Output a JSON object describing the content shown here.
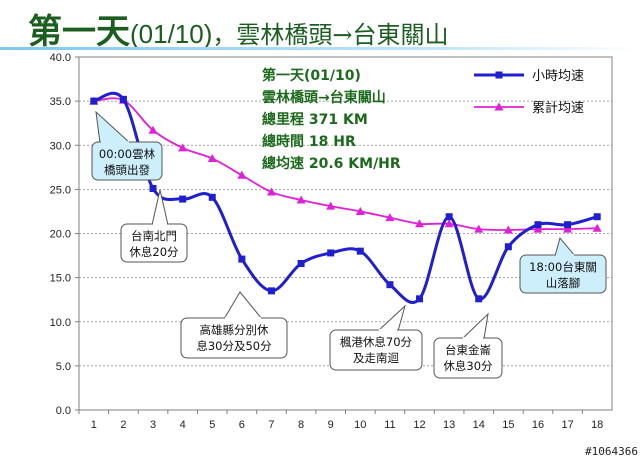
{
  "title": {
    "main": "第一天",
    "date": "(01/10)",
    "route": "，雲林橋頭→台東關山"
  },
  "chart_data": {
    "type": "line",
    "categories": [
      "1",
      "2",
      "3",
      "4",
      "5",
      "6",
      "7",
      "8",
      "9",
      "10",
      "11",
      "12",
      "13",
      "14",
      "15",
      "16",
      "17",
      "18"
    ],
    "ylim": [
      0,
      40
    ],
    "yticks": [
      "0.0",
      "5.0",
      "10.0",
      "15.0",
      "20.0",
      "25.0",
      "30.0",
      "35.0",
      "40.0"
    ],
    "grid": true,
    "legend_position": "top-right",
    "series": [
      {
        "name": "小時均速",
        "color": "#1f1fd0",
        "marker": "square",
        "values": [
          35.0,
          35.2,
          25.1,
          23.9,
          24.1,
          17.1,
          13.5,
          16.6,
          17.8,
          18.0,
          14.2,
          12.6,
          21.9,
          12.6,
          18.5,
          21.0,
          21.0,
          21.9
        ]
      },
      {
        "name": "累計均速",
        "color": "#e020d8",
        "marker": "triangle",
        "values": [
          35.0,
          35.1,
          31.7,
          29.7,
          28.5,
          26.6,
          24.7,
          23.8,
          23.1,
          22.5,
          21.8,
          21.1,
          21.1,
          20.5,
          20.4,
          20.5,
          20.5,
          20.6
        ]
      }
    ],
    "summary": [
      "第一天(01/10)",
      "雲林橋頭→台東關山",
      "總里程 371 KM",
      "總時間 18 HR",
      "總均速 20.6 KM/HR"
    ],
    "annotations": [
      {
        "lines": [
          "00:00雲林",
          "橋頭出發"
        ],
        "fill": "#cdeefb"
      },
      {
        "lines": [
          "台南北門",
          "休息20分"
        ],
        "fill": "#ffffff"
      },
      {
        "lines": [
          "高雄縣分別休",
          "息30分及50分"
        ],
        "fill": "#ffffff"
      },
      {
        "lines": [
          "楓港休息70分",
          "及走南迴"
        ],
        "fill": "#ffffff"
      },
      {
        "lines": [
          "台東金崙",
          "休息30分"
        ],
        "fill": "#ffffff"
      },
      {
        "lines": [
          "18:00台東關",
          "山落腳"
        ],
        "fill": "#cdeefb"
      }
    ]
  },
  "watermark": "#1064366"
}
